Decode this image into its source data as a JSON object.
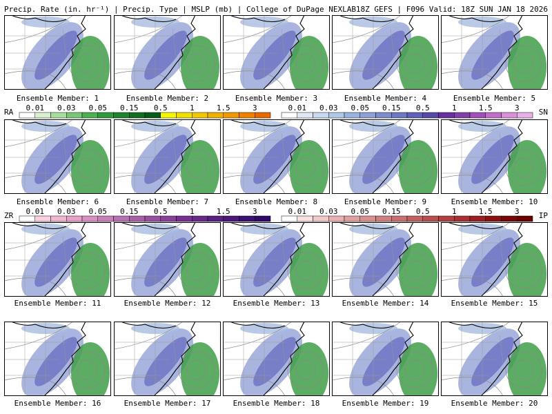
{
  "header": {
    "left": "Precip. Rate (in. hr⁻¹) | Precip. Type | MSLP (mb) | College of DuPage NEXLAB",
    "right": "18Z GEFS | F096 Valid: 18Z SUN JAN 18 2026"
  },
  "panels": [
    {
      "label": "Ensemble Member: 1"
    },
    {
      "label": "Ensemble Member: 2"
    },
    {
      "label": "Ensemble Member: 3"
    },
    {
      "label": "Ensemble Member: 4"
    },
    {
      "label": "Ensemble Member: 5"
    },
    {
      "label": "Ensemble Member: 6"
    },
    {
      "label": "Ensemble Member: 7"
    },
    {
      "label": "Ensemble Member: 8"
    },
    {
      "label": "Ensemble Member: 9"
    },
    {
      "label": "Ensemble Member: 10"
    },
    {
      "label": "Ensemble Member: 11"
    },
    {
      "label": "Ensemble Member: 12"
    },
    {
      "label": "Ensemble Member: 13"
    },
    {
      "label": "Ensemble Member: 14"
    },
    {
      "label": "Ensemble Member: 15"
    },
    {
      "label": "Ensemble Member: 16"
    },
    {
      "label": "Ensemble Member: 17"
    },
    {
      "label": "Ensemble Member: 18"
    },
    {
      "label": "Ensemble Member: 19"
    },
    {
      "label": "Ensemble Member: 20"
    }
  ],
  "legends": [
    {
      "label": "RA",
      "ticks": [
        "0.01",
        "0.03",
        "0.05",
        "0.15",
        "0.5",
        "1",
        "1.5",
        "3"
      ],
      "colors": [
        "#ffffff",
        "#d8f0d0",
        "#a8dca0",
        "#78c878",
        "#4cb050",
        "#2e9a3c",
        "#1e8430",
        "#136e24",
        "#0a5a1a",
        "#f5f500",
        "#f0e000",
        "#f0c800",
        "#f0b000",
        "#f09800",
        "#f08000",
        "#e86800"
      ]
    },
    {
      "label": "SN",
      "ticks": [
        "0.01",
        "0.03",
        "0.05",
        "0.15",
        "0.5",
        "1",
        "1.5",
        "3"
      ],
      "colors": [
        "#ffffff",
        "#e0e8f4",
        "#c8d8ee",
        "#b0c8e6",
        "#98b4de",
        "#8ea0d6",
        "#7c8ccc",
        "#6c78c2",
        "#6060b8",
        "#5848a8",
        "#6a30a0",
        "#8040a8",
        "#a050b8",
        "#c070c8",
        "#d890d8",
        "#e8b0e8"
      ]
    },
    {
      "label": "ZR",
      "ticks": [
        "0.01",
        "0.03",
        "0.05",
        "0.15",
        "0.5",
        "1",
        "1.5",
        "3"
      ],
      "colors": [
        "#ffffff",
        "#f8d0e0",
        "#f0b8d0",
        "#e8a0c8",
        "#d890c0",
        "#c880b8",
        "#b870b0",
        "#a860a8",
        "#9850a0",
        "#884098",
        "#783090",
        "#682888",
        "#582080",
        "#4a1878",
        "#3c1070",
        "#300868"
      ]
    },
    {
      "label": "IP",
      "ticks": [
        "0.01",
        "0.03",
        "0.05",
        "0.15",
        "0.5",
        "1",
        "1.5",
        "3"
      ],
      "colors": [
        "#ffffff",
        "#f8e0e0",
        "#f0c8c8",
        "#e8b0b0",
        "#e0a0a0",
        "#d89090",
        "#d08080",
        "#c87070",
        "#c06060",
        "#b85050",
        "#b04040",
        "#a83030",
        "#982020",
        "#881010",
        "#780808",
        "#680000"
      ]
    }
  ]
}
